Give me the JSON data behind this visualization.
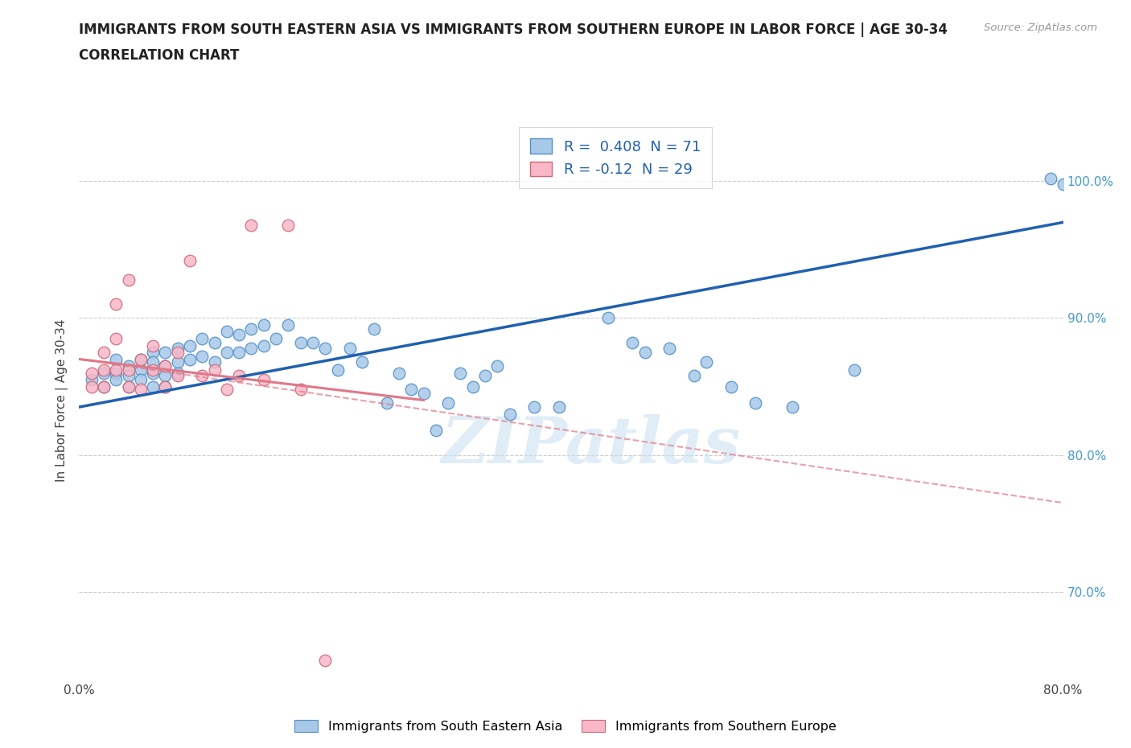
{
  "title_line1": "IMMIGRANTS FROM SOUTH EASTERN ASIA VS IMMIGRANTS FROM SOUTHERN EUROPE IN LABOR FORCE | AGE 30-34",
  "title_line2": "CORRELATION CHART",
  "source_text": "Source: ZipAtlas.com",
  "ylabel": "In Labor Force | Age 30-34",
  "xlim": [
    0.0,
    0.8
  ],
  "ylim": [
    0.635,
    1.045
  ],
  "xticks": [
    0.0,
    0.2,
    0.4,
    0.6,
    0.8
  ],
  "xticklabels": [
    "0.0%",
    "",
    "",
    "",
    "80.0%"
  ],
  "ytick_positions": [
    0.7,
    0.8,
    0.9,
    1.0
  ],
  "ytick_labels": [
    "70.0%",
    "80.0%",
    "90.0%",
    "100.0%"
  ],
  "blue_color": "#a8c8e8",
  "blue_edge_color": "#5090c8",
  "pink_color": "#f8b8c8",
  "pink_edge_color": "#d06878",
  "blue_line_color": "#2060b0",
  "pink_line_color": "#e07888",
  "R_blue": 0.408,
  "N_blue": 71,
  "R_pink": -0.12,
  "N_pink": 29,
  "legend_label_blue": "Immigrants from South Eastern Asia",
  "legend_label_pink": "Immigrants from Southern Europe",
  "watermark": "ZIPatlas",
  "blue_line_x0": 0.0,
  "blue_line_y0": 0.835,
  "blue_line_x1": 0.8,
  "blue_line_y1": 0.97,
  "pink_line_solid_x0": 0.0,
  "pink_line_solid_y0": 0.87,
  "pink_line_solid_x1": 0.28,
  "pink_line_solid_y1": 0.84,
  "pink_line_dash_x0": 0.0,
  "pink_line_dash_y0": 0.87,
  "pink_line_dash_x1": 0.8,
  "pink_line_dash_y1": 0.765,
  "blue_scatter_x": [
    0.01,
    0.02,
    0.02,
    0.03,
    0.03,
    0.03,
    0.04,
    0.04,
    0.04,
    0.05,
    0.05,
    0.05,
    0.06,
    0.06,
    0.06,
    0.06,
    0.07,
    0.07,
    0.07,
    0.07,
    0.08,
    0.08,
    0.08,
    0.09,
    0.09,
    0.1,
    0.1,
    0.11,
    0.11,
    0.12,
    0.12,
    0.13,
    0.13,
    0.14,
    0.14,
    0.15,
    0.15,
    0.16,
    0.17,
    0.18,
    0.19,
    0.2,
    0.21,
    0.22,
    0.23,
    0.24,
    0.25,
    0.26,
    0.27,
    0.28,
    0.29,
    0.3,
    0.31,
    0.32,
    0.33,
    0.34,
    0.35,
    0.37,
    0.39,
    0.43,
    0.45,
    0.46,
    0.48,
    0.5,
    0.51,
    0.53,
    0.55,
    0.58,
    0.63,
    0.79,
    0.8
  ],
  "blue_scatter_y": [
    0.855,
    0.86,
    0.85,
    0.87,
    0.86,
    0.855,
    0.865,
    0.858,
    0.85,
    0.87,
    0.862,
    0.855,
    0.875,
    0.868,
    0.86,
    0.85,
    0.875,
    0.865,
    0.858,
    0.85,
    0.878,
    0.868,
    0.86,
    0.88,
    0.87,
    0.885,
    0.872,
    0.882,
    0.868,
    0.89,
    0.875,
    0.888,
    0.875,
    0.892,
    0.878,
    0.895,
    0.88,
    0.885,
    0.895,
    0.882,
    0.882,
    0.878,
    0.862,
    0.878,
    0.868,
    0.892,
    0.838,
    0.86,
    0.848,
    0.845,
    0.818,
    0.838,
    0.86,
    0.85,
    0.858,
    0.865,
    0.83,
    0.835,
    0.835,
    0.9,
    0.882,
    0.875,
    0.878,
    0.858,
    0.868,
    0.85,
    0.838,
    0.835,
    0.862,
    1.002,
    0.998
  ],
  "pink_scatter_x": [
    0.01,
    0.01,
    0.02,
    0.02,
    0.02,
    0.03,
    0.03,
    0.03,
    0.04,
    0.04,
    0.04,
    0.05,
    0.05,
    0.06,
    0.06,
    0.07,
    0.07,
    0.08,
    0.08,
    0.09,
    0.1,
    0.11,
    0.12,
    0.13,
    0.14,
    0.15,
    0.17,
    0.18,
    0.2
  ],
  "pink_scatter_y": [
    0.86,
    0.85,
    0.875,
    0.862,
    0.85,
    0.91,
    0.885,
    0.862,
    0.85,
    0.928,
    0.862,
    0.848,
    0.87,
    0.88,
    0.862,
    0.85,
    0.865,
    0.875,
    0.858,
    0.942,
    0.858,
    0.862,
    0.848,
    0.858,
    0.968,
    0.855,
    0.968,
    0.848,
    0.65
  ]
}
